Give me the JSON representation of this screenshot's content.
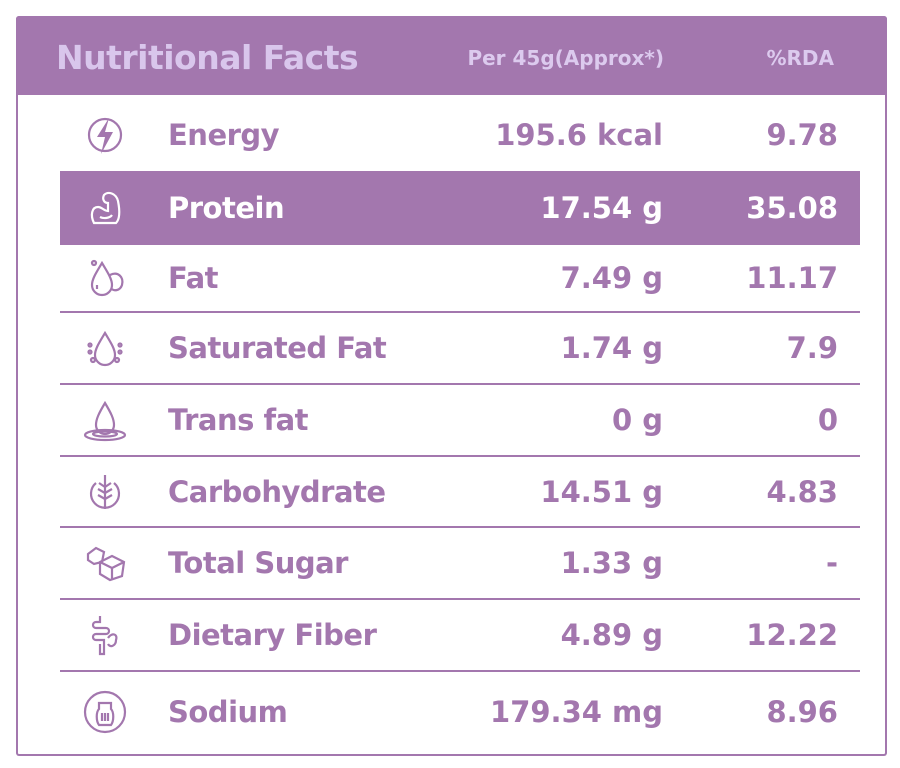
{
  "header": {
    "title": "Nutritional Facts",
    "per_label": "Per 45g(Approx*)",
    "rda_label": "%RDA"
  },
  "accent_color": "#a377ae",
  "rows": [
    {
      "icon": "lightning-icon",
      "label": "Energy",
      "value": "195.6 kcal",
      "rda": "9.78"
    },
    {
      "icon": "muscle-arm-icon",
      "label": "Protein",
      "value": "17.54 g",
      "rda": "35.08",
      "highlighted": true
    },
    {
      "icon": "oil-drop-nut-icon",
      "label": "Fat",
      "value": "7.49 g",
      "rda": "11.17"
    },
    {
      "icon": "drop-bubbles-icon",
      "label": "Saturated Fat",
      "value": "1.74 g",
      "rda": "7.9"
    },
    {
      "icon": "drop-ripple-icon",
      "label": "Trans fat",
      "value": "0 g",
      "rda": "0"
    },
    {
      "icon": "wheat-icon",
      "label": "Carbohydrate",
      "value": "14.51 g",
      "rda": "4.83"
    },
    {
      "icon": "sugar-cubes-icon",
      "label": "Total Sugar",
      "value": "1.33 g",
      "rda": "-"
    },
    {
      "icon": "intestine-icon",
      "label": "Dietary Fiber",
      "value": "4.89 g",
      "rda": "12.22"
    },
    {
      "icon": "salt-shaker-icon",
      "label": "Sodium",
      "value": "179.34 mg",
      "rda": "8.96"
    }
  ]
}
